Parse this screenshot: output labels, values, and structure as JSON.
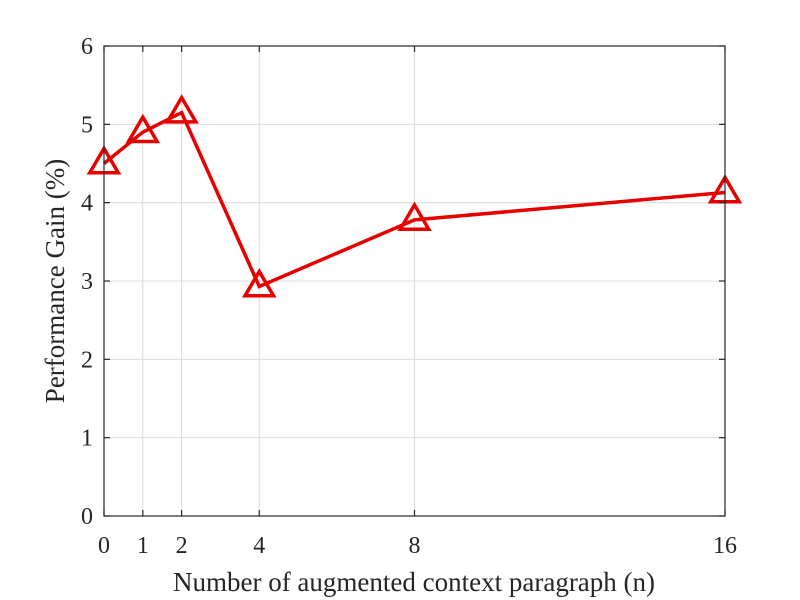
{
  "chart_data": {
    "type": "line",
    "title": "",
    "xlabel": "Number of augmented context paragraph (n)",
    "ylabel": "Performance Gain (%)",
    "x": [
      0,
      1,
      2,
      4,
      8,
      16
    ],
    "x_ticks": [
      "0",
      "1",
      "2",
      "4",
      "8",
      "16"
    ],
    "y_ticks": [
      "0",
      "1",
      "2",
      "3",
      "4",
      "5",
      "6"
    ],
    "xlim": [
      0,
      16
    ],
    "ylim": [
      0,
      6
    ],
    "grid": true,
    "series": [
      {
        "values": [
          4.5,
          4.9,
          5.15,
          2.93,
          3.78,
          4.13
        ],
        "color": "#e60000",
        "marker": "triangle"
      }
    ]
  }
}
